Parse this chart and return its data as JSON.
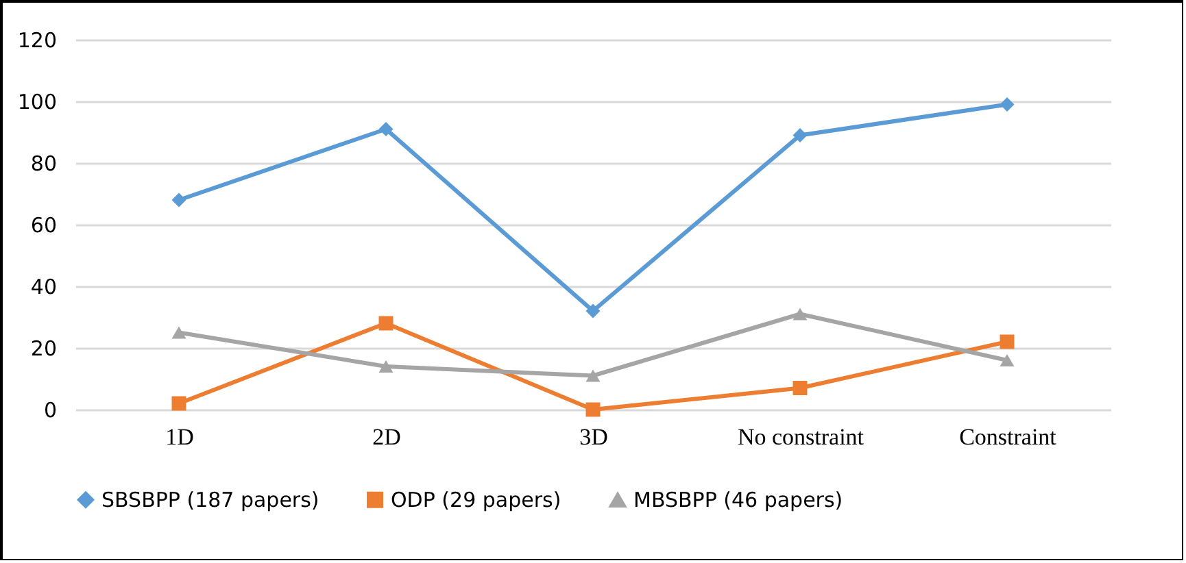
{
  "chart_data": {
    "type": "line",
    "categories": [
      "1D",
      "2D",
      "3D",
      "No constraint",
      "Constraint"
    ],
    "series": [
      {
        "name": "SBSBPP (187 papers)",
        "color": "#5b9bd5",
        "marker": "diamond",
        "values": [
          68,
          91,
          32,
          89,
          99
        ]
      },
      {
        "name": "ODP (29 papers)",
        "color": "#ed7d31",
        "marker": "square",
        "values": [
          2,
          28,
          0,
          7,
          22
        ]
      },
      {
        "name": "MBSBPP (46 papers)",
        "color": "#a5a5a5",
        "marker": "triangle",
        "values": [
          25,
          14,
          11,
          31,
          16
        ]
      }
    ],
    "ylim": [
      0,
      120
    ],
    "yticks": [
      0,
      20,
      40,
      60,
      80,
      100,
      120
    ],
    "grid": "y",
    "legend": "bottom",
    "line_style": "solid"
  }
}
